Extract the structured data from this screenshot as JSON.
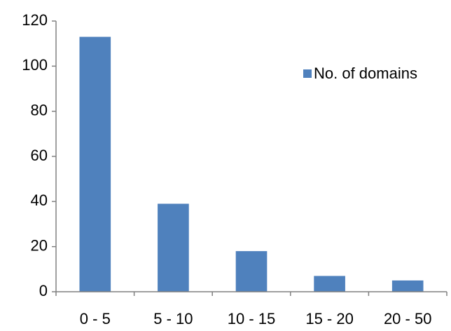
{
  "chart_data": {
    "type": "bar",
    "title": "",
    "xlabel": "",
    "ylabel": "",
    "categories": [
      "0 - 5",
      "5 - 10",
      "10 - 15",
      "15 - 20",
      "20 - 50"
    ],
    "series": [
      {
        "name": "No. of domains",
        "values": [
          113,
          39,
          18,
          7,
          5
        ],
        "color": "#4F81BD"
      }
    ],
    "ylim": [
      0,
      120
    ],
    "yticks": [
      0,
      20,
      40,
      60,
      80,
      100,
      120
    ],
    "grid": false,
    "legend_position": "top-right"
  }
}
